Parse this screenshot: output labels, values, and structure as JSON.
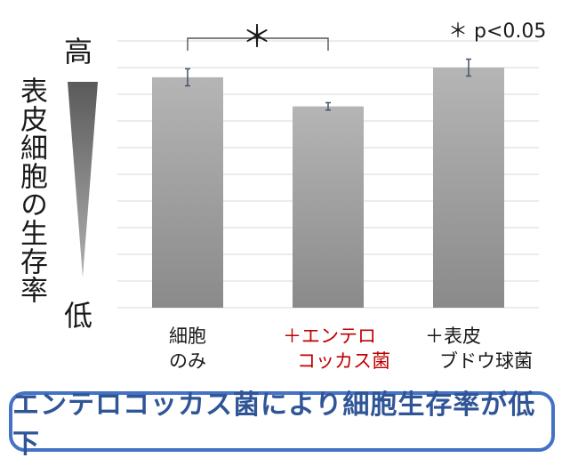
{
  "chart_data": {
    "type": "bar",
    "categories": [
      [
        "細胞",
        "のみ"
      ],
      [
        "＋エンテロ",
        "コッカス菌"
      ],
      [
        "＋表皮",
        "ブドウ球菌"
      ]
    ],
    "values": [
      95,
      83,
      99
    ],
    "errors": [
      3.5,
      1.5,
      3.5
    ],
    "ylim": [
      0,
      110
    ],
    "grid": true,
    "ylabel": "表皮細胞の生存率",
    "y_high": "高",
    "y_low": "低",
    "significance_star": "＊",
    "significance_note": "＊ p<0.05",
    "significance_between": [
      0,
      1
    ]
  },
  "conclusion": "エンテロコッカス菌により細胞生存率が低下",
  "colors": {
    "bar_top": "#b5b5b5",
    "bar_bottom": "#8a8a8a",
    "grid": "#d9d9d9",
    "error": "#44546a",
    "highlight_text": "#c00000",
    "box_border": "#4472c4",
    "box_text": "#2f5597"
  }
}
